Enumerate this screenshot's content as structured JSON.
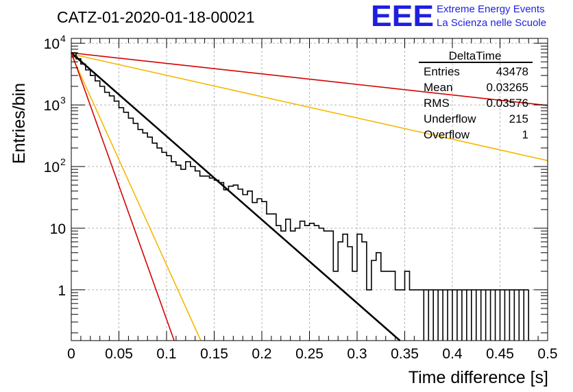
{
  "title": "CATZ-01-2020-01-18-00021",
  "logo": {
    "letters": "EEE",
    "line1": "Extreme Energy Events",
    "line2": "La Scienza nelle Scuole",
    "color": "#1f1fe0"
  },
  "stats": {
    "name": "DeltaTime",
    "rows": [
      {
        "label": "Entries",
        "value": "43478"
      },
      {
        "label": "Mean",
        "value": "0.03265"
      },
      {
        "label": "RMS",
        "value": "0.03576"
      },
      {
        "label": "Underflow",
        "value": "215"
      },
      {
        "label": "Overflow",
        "value": "1"
      }
    ]
  },
  "chart_data": {
    "type": "line",
    "xlabel": "Time difference [s]",
    "ylabel": "Entries/bin",
    "xlim": [
      0,
      0.5
    ],
    "ylim": [
      0.15,
      12000
    ],
    "yscale": "log",
    "grid": true,
    "x_ticks": [
      {
        "v": 0,
        "label": "0"
      },
      {
        "v": 0.05,
        "label": "0.05"
      },
      {
        "v": 0.1,
        "label": "0.1"
      },
      {
        "v": 0.15,
        "label": "0.15"
      },
      {
        "v": 0.2,
        "label": "0.2"
      },
      {
        "v": 0.25,
        "label": "0.25"
      },
      {
        "v": 0.3,
        "label": "0.3"
      },
      {
        "v": 0.35,
        "label": "0.35"
      },
      {
        "v": 0.4,
        "label": "0.4"
      },
      {
        "v": 0.45,
        "label": "0.45"
      },
      {
        "v": 0.5,
        "label": "0.5"
      }
    ],
    "y_ticks": [
      {
        "v": 1,
        "label": "1"
      },
      {
        "v": 10,
        "label": "10"
      },
      {
        "v": 100,
        "label": "10",
        "sup": "2"
      },
      {
        "v": 1000,
        "label": "10",
        "sup": "3"
      },
      {
        "v": 10000,
        "label": "10",
        "sup": "4"
      }
    ],
    "histogram": {
      "color": "#000000",
      "bin_edges": [
        0.37,
        0.375,
        0.38,
        0.385,
        0.39,
        0.395,
        0.4,
        0.405,
        0.41,
        0.415,
        0.42,
        0.425,
        0.43,
        0.435,
        0.44,
        0.445,
        0.45,
        0.455,
        0.46,
        0.465,
        0.47,
        0.475,
        0.48
      ],
      "points": [
        [
          0.0,
          7000
        ],
        [
          0.005,
          5600
        ],
        [
          0.01,
          4600
        ],
        [
          0.015,
          3700
        ],
        [
          0.02,
          3000
        ],
        [
          0.025,
          2450
        ],
        [
          0.03,
          2000
        ],
        [
          0.035,
          1600
        ],
        [
          0.04,
          1400
        ],
        [
          0.045,
          1150
        ],
        [
          0.05,
          900
        ],
        [
          0.055,
          760
        ],
        [
          0.06,
          610
        ],
        [
          0.065,
          500
        ],
        [
          0.07,
          400
        ],
        [
          0.075,
          350
        ],
        [
          0.08,
          300
        ],
        [
          0.085,
          240
        ],
        [
          0.09,
          200
        ],
        [
          0.095,
          170
        ],
        [
          0.1,
          150
        ],
        [
          0.105,
          120
        ],
        [
          0.11,
          105
        ],
        [
          0.115,
          90
        ],
        [
          0.12,
          120
        ],
        [
          0.125,
          100
        ],
        [
          0.13,
          85
        ],
        [
          0.135,
          70
        ],
        [
          0.14,
          70
        ],
        [
          0.145,
          65
        ],
        [
          0.15,
          60
        ],
        [
          0.155,
          55
        ],
        [
          0.16,
          42
        ],
        [
          0.165,
          48
        ],
        [
          0.17,
          50
        ],
        [
          0.175,
          43
        ],
        [
          0.18,
          35
        ],
        [
          0.185,
          40
        ],
        [
          0.19,
          26
        ],
        [
          0.195,
          30
        ],
        [
          0.2,
          27
        ],
        [
          0.205,
          17
        ],
        [
          0.21,
          17
        ],
        [
          0.215,
          11
        ],
        [
          0.22,
          9
        ],
        [
          0.225,
          14
        ],
        [
          0.23,
          9
        ],
        [
          0.235,
          10
        ],
        [
          0.24,
          13
        ],
        [
          0.245,
          11
        ],
        [
          0.25,
          12
        ],
        [
          0.255,
          11
        ],
        [
          0.26,
          10
        ],
        [
          0.265,
          9
        ],
        [
          0.27,
          9
        ],
        [
          0.275,
          2
        ],
        [
          0.28,
          6
        ],
        [
          0.285,
          8
        ],
        [
          0.29,
          5
        ],
        [
          0.295,
          2
        ],
        [
          0.3,
          8
        ],
        [
          0.305,
          6
        ],
        [
          0.31,
          1
        ],
        [
          0.315,
          3
        ],
        [
          0.32,
          4
        ],
        [
          0.325,
          2
        ],
        [
          0.33,
          2
        ],
        [
          0.335,
          2
        ],
        [
          0.34,
          1
        ],
        [
          0.345,
          1
        ],
        [
          0.35,
          2
        ],
        [
          0.355,
          1
        ],
        [
          0.36,
          1
        ],
        [
          0.365,
          1
        ],
        [
          0.37,
          1
        ],
        [
          0.375,
          1
        ],
        [
          0.38,
          1
        ],
        [
          0.385,
          1
        ],
        [
          0.39,
          1
        ],
        [
          0.395,
          1
        ],
        [
          0.4,
          1
        ],
        [
          0.405,
          1
        ],
        [
          0.41,
          1
        ],
        [
          0.415,
          1
        ],
        [
          0.42,
          1
        ],
        [
          0.425,
          1
        ],
        [
          0.43,
          1
        ],
        [
          0.435,
          1
        ],
        [
          0.44,
          1
        ],
        [
          0.445,
          1
        ],
        [
          0.45,
          1
        ],
        [
          0.455,
          1
        ],
        [
          0.46,
          1
        ],
        [
          0.465,
          1
        ],
        [
          0.47,
          1
        ],
        [
          0.475,
          1
        ]
      ]
    },
    "series": [
      {
        "color": "#d40000",
        "width": 1.6,
        "points": [
          [
            0,
            7000
          ],
          [
            0.5,
            980
          ]
        ]
      },
      {
        "color": "#f5b800",
        "width": 1.6,
        "points": [
          [
            0,
            6700
          ],
          [
            0.5,
            125
          ]
        ]
      },
      {
        "color": "#000000",
        "width": 2.6,
        "points": [
          [
            0,
            7000
          ],
          [
            0.345,
            0.15
          ]
        ]
      },
      {
        "color": "#f5b800",
        "width": 1.6,
        "points": [
          [
            0,
            6600
          ],
          [
            0.136,
            0.15
          ]
        ]
      },
      {
        "color": "#d40000",
        "width": 1.6,
        "points": [
          [
            0,
            7200
          ],
          [
            0.108,
            0.15
          ]
        ]
      }
    ]
  }
}
